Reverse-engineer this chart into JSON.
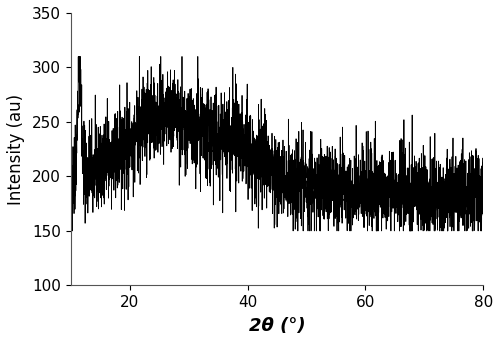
{
  "xlabel": "2θ (°)",
  "ylabel": "Intensity (au)",
  "xlim": [
    10,
    80
  ],
  "ylim": [
    100,
    350
  ],
  "xticks": [
    20,
    40,
    60,
    80
  ],
  "yticks": [
    100,
    150,
    200,
    250,
    300,
    350
  ],
  "line_color": "#000000",
  "line_width": 0.6,
  "background_color": "#ffffff",
  "seed": 42,
  "n_points": 3500,
  "xlabel_fontsize": 13,
  "ylabel_fontsize": 12,
  "xlabel_fontweight": "bold",
  "tick_fontsize": 11
}
